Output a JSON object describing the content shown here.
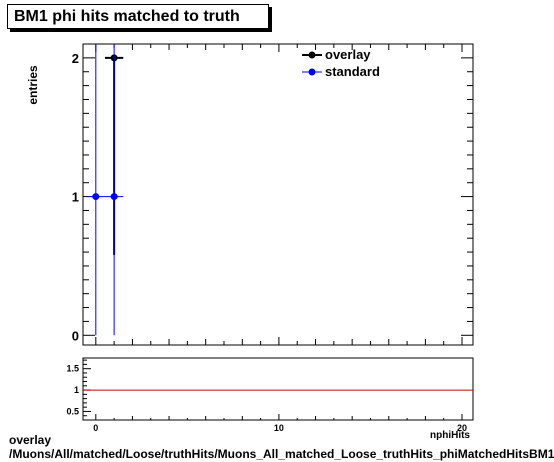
{
  "chart_data": [
    {
      "type": "scatter",
      "title": "BM1 phi hits matched to truth",
      "ylabel": "entries",
      "xlim": [
        -0.7,
        20.6
      ],
      "ylim": [
        -0.07,
        2.1
      ],
      "y_ticks": [
        "0",
        "1",
        "2"
      ],
      "x_ticks": [
        "0",
        "10",
        "20"
      ],
      "legend": {
        "placement": "top-right"
      },
      "series": [
        {
          "name": "overlay",
          "color": "#000000",
          "points": [
            {
              "x": 1,
              "y": 2,
              "err_low": 1.42,
              "err_high": 0
            }
          ]
        },
        {
          "name": "standard",
          "color": "#0000ff",
          "points": [
            {
              "x": 0,
              "y": 1,
              "err_low": 1,
              "err_high": 1.1
            },
            {
              "x": 1,
              "y": 1,
              "err_low": 1,
              "err_high": 1.1
            }
          ]
        }
      ]
    },
    {
      "type": "line",
      "xlim": [
        -0.7,
        20.6
      ],
      "ylim": [
        0.3,
        1.75
      ],
      "y_ticks": [
        "0.5",
        "1",
        "1.5"
      ],
      "x_ticks": [
        "0",
        "10",
        "20"
      ],
      "xlabel": "nphiHits",
      "reference_line": {
        "y": 1,
        "color": "#cc0000"
      }
    }
  ],
  "footer": {
    "line1": "overlay",
    "line2": "/Muons/All/matched/Loose/truthHits/Muons_All_matched_Loose_truthHits_phiMatchedHitsBM1"
  }
}
